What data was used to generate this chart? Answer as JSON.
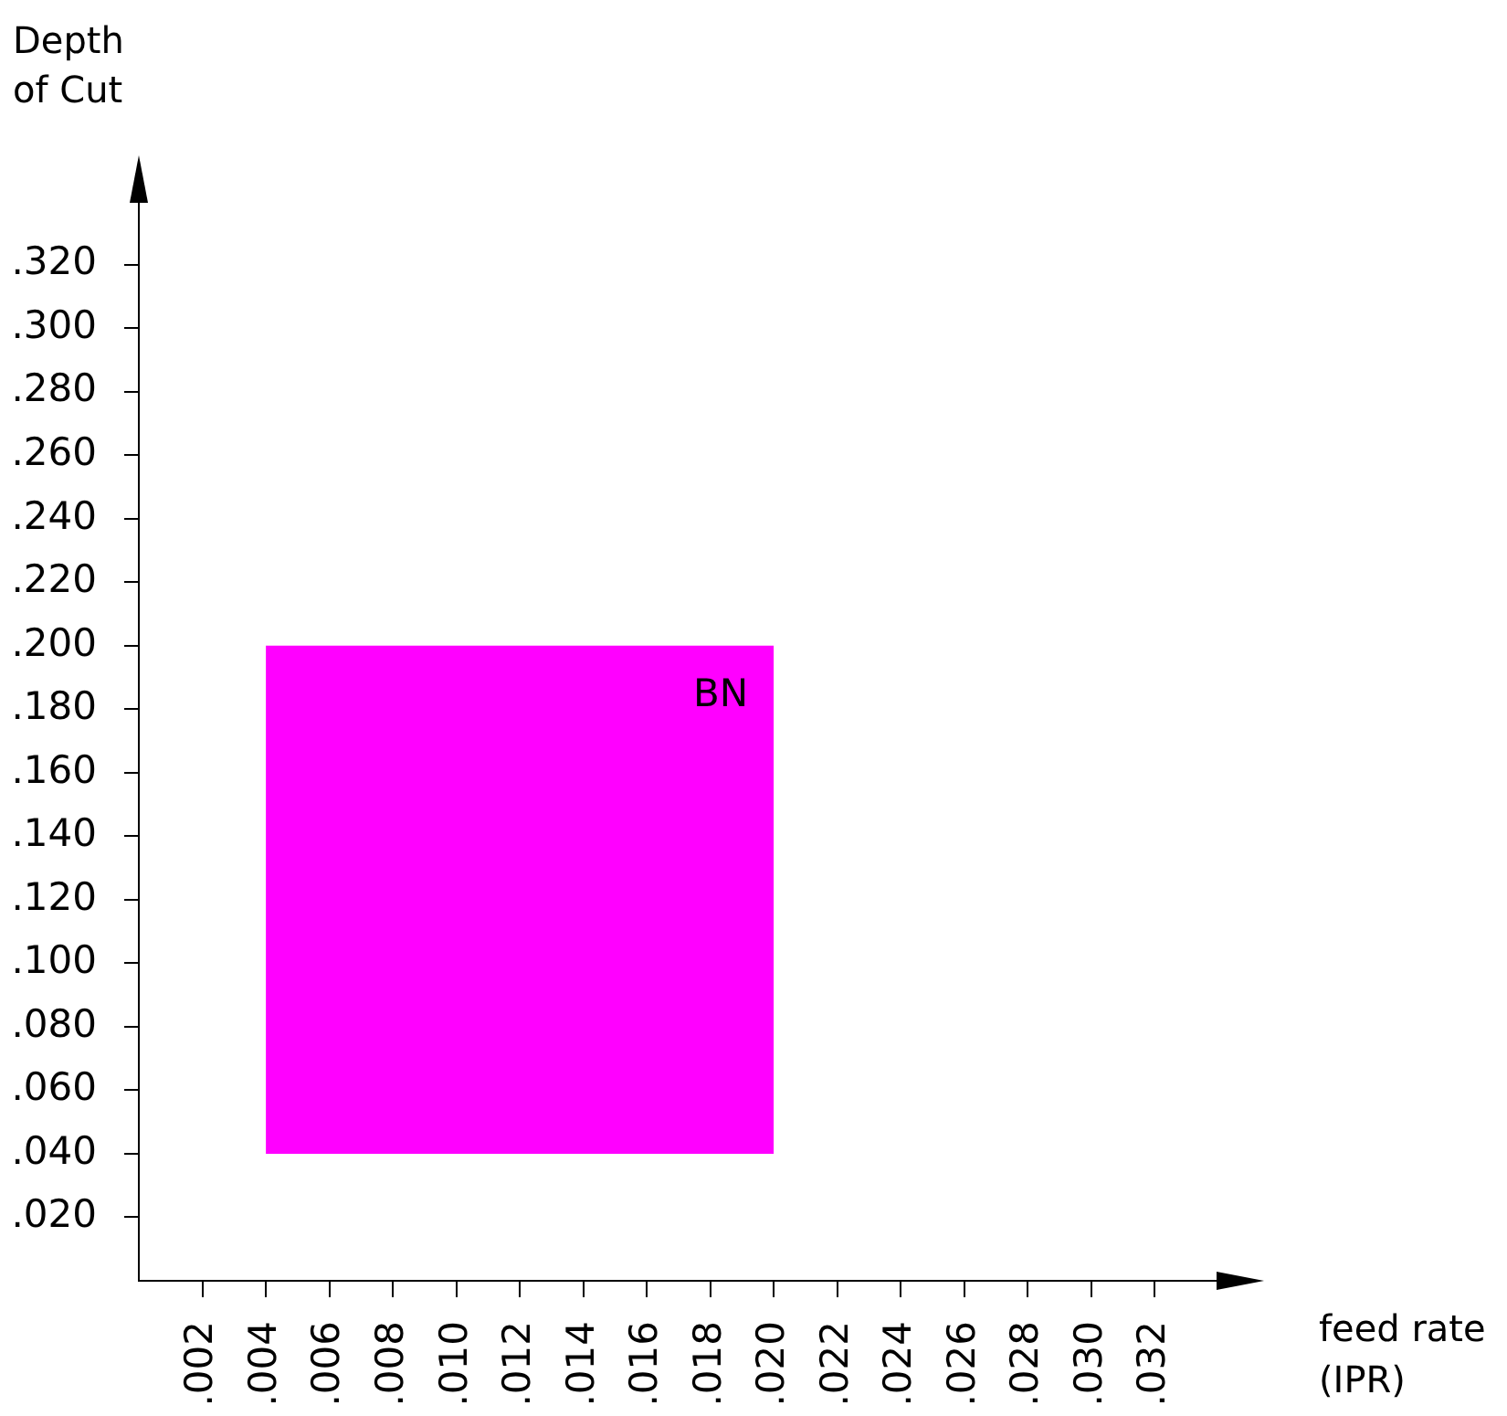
{
  "chart_data": {
    "type": "line",
    "xlabel": "feed rate (IPR)",
    "ylabel": "Depth of Cut",
    "series": [
      {
        "color": "#ff00ff",
        "x": [
          0.004,
          0.02
        ],
        "values": [
          null,
          null
        ],
        "lower": [
          0.04,
          0.04
        ],
        "upper": [
          0.2,
          0.2
        ]
      }
    ],
    "annotations": [
      "BN"
    ],
    "xlim": [
      0,
      0.034
    ],
    "ylim": [
      0,
      0.34
    ],
    "xticks": [
      {
        "value": 0.002,
        "label": ".002"
      },
      {
        "value": 0.004,
        "label": ".004"
      },
      {
        "value": 0.006,
        "label": ".006"
      },
      {
        "value": 0.008,
        "label": ".008"
      },
      {
        "value": 0.01,
        "label": ".010"
      },
      {
        "value": 0.012,
        "label": ".012"
      },
      {
        "value": 0.014,
        "label": ".014"
      },
      {
        "value": 0.016,
        "label": ".016"
      },
      {
        "value": 0.018,
        "label": ".018"
      },
      {
        "value": 0.02,
        "label": ".020"
      },
      {
        "value": 0.022,
        "label": ".022"
      },
      {
        "value": 0.024,
        "label": ".024"
      },
      {
        "value": 0.026,
        "label": ".026"
      },
      {
        "value": 0.028,
        "label": ".028"
      },
      {
        "value": 0.03,
        "label": ".030"
      },
      {
        "value": 0.032,
        "label": ".032"
      }
    ],
    "yticks": [
      {
        "value": 0.02,
        "label": ".020"
      },
      {
        "value": 0.04,
        "label": ".040"
      },
      {
        "value": 0.06,
        "label": ".060"
      },
      {
        "value": 0.08,
        "label": ".080"
      },
      {
        "value": 0.1,
        "label": ".100"
      },
      {
        "value": 0.12,
        "label": ".120"
      },
      {
        "value": 0.14,
        "label": ".140"
      },
      {
        "value": 0.16,
        "label": ".160"
      },
      {
        "value": 0.18,
        "label": ".180"
      },
      {
        "value": 0.2,
        "label": ".200"
      },
      {
        "value": 0.22,
        "label": ".220"
      },
      {
        "value": 0.24,
        "label": ".240"
      },
      {
        "value": 0.26,
        "label": ".260"
      },
      {
        "value": 0.28,
        "label": ".280"
      },
      {
        "value": 0.3,
        "label": ".300"
      },
      {
        "value": 0.32,
        "label": ".320"
      }
    ],
    "grid": false,
    "legend": false
  }
}
